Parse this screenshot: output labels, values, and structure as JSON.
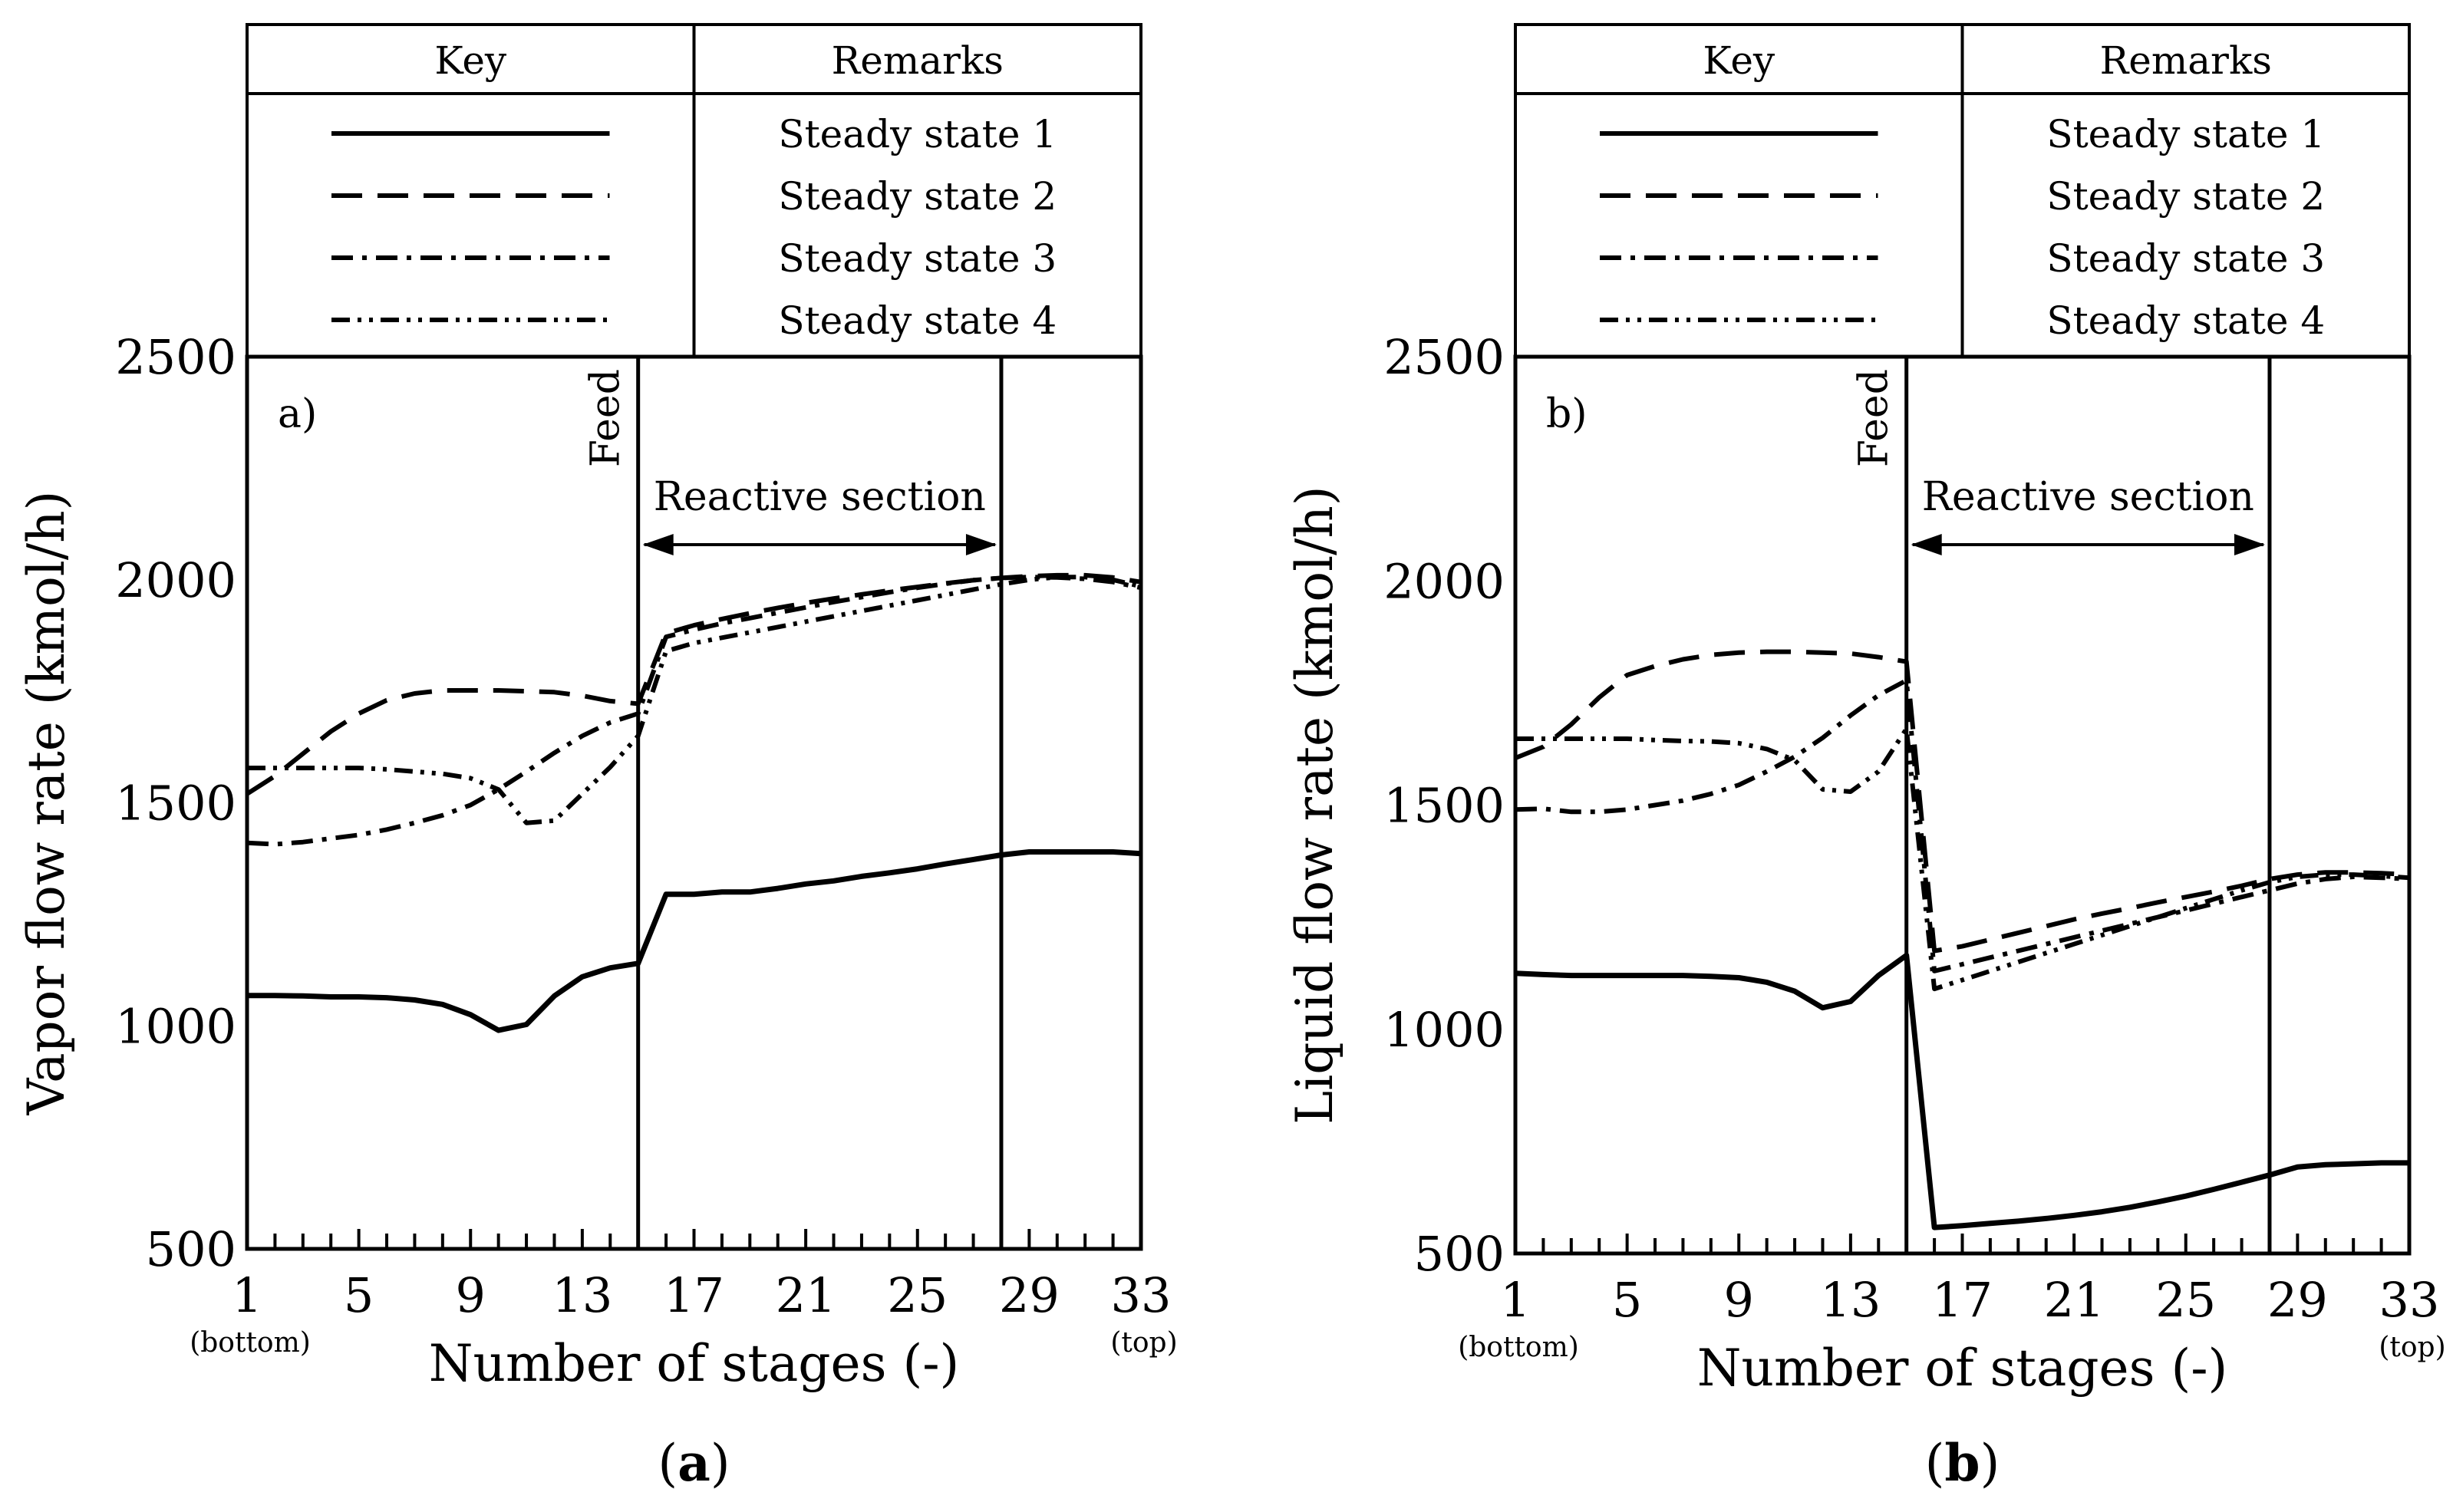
{
  "legend_header": {
    "key": "Key",
    "remarks": "Remarks"
  },
  "legend_entries": [
    {
      "label": "Steady state 1",
      "style": "solid"
    },
    {
      "label": "Steady state 2",
      "style": "long-dash"
    },
    {
      "label": "Steady state 3",
      "style": "dash-dot"
    },
    {
      "label": "Steady state 4",
      "style": "dash-dot-dot"
    }
  ],
  "x_axis": {
    "title": "Number of stages (-)",
    "ticks": [
      "1",
      "5",
      "9",
      "13",
      "17",
      "21",
      "25",
      "29",
      "33"
    ],
    "bottom_note": "(bottom)",
    "top_note": "(top)",
    "range": [
      1,
      33
    ]
  },
  "y_axis": {
    "ticks": [
      "500",
      "1000",
      "1500",
      "2000",
      "2500"
    ],
    "range": [
      500,
      2500
    ]
  },
  "annotations": {
    "feed": "Feed",
    "reactive_section": "Reactive section",
    "feed_stage": 15,
    "reactive_end_stage": 28
  },
  "colors": {
    "line": "#000000",
    "background": "#ffffff"
  },
  "chart_data": [
    {
      "type": "line",
      "panel_label": "a)",
      "caption_letter": "a",
      "xlabel": "Number of stages (-)",
      "ylabel": "Vapor flow rate (kmol/h)",
      "xlim": [
        1,
        33
      ],
      "ylim": [
        500,
        2500
      ],
      "x": [
        1,
        2,
        3,
        4,
        5,
        6,
        7,
        8,
        9,
        10,
        11,
        12,
        13,
        14,
        15,
        16,
        17,
        18,
        19,
        20,
        21,
        22,
        23,
        24,
        25,
        26,
        27,
        28,
        29,
        30,
        31,
        32,
        33
      ],
      "series": [
        {
          "name": "Steady state 1",
          "style": "solid",
          "values": [
            1068,
            1068,
            1067,
            1065,
            1065,
            1063,
            1058,
            1048,
            1025,
            990,
            1003,
            1067,
            1110,
            1130,
            1140,
            1295,
            1295,
            1300,
            1300,
            1308,
            1318,
            1325,
            1335,
            1343,
            1352,
            1363,
            1373,
            1383,
            1390,
            1390,
            1390,
            1390,
            1386
          ]
        },
        {
          "name": "Steady state 2",
          "style": "long-dash",
          "values": [
            1520,
            1560,
            1610,
            1660,
            1700,
            1730,
            1745,
            1752,
            1752,
            1752,
            1750,
            1748,
            1740,
            1728,
            1722,
            1880,
            1898,
            1912,
            1925,
            1937,
            1948,
            1958,
            1967,
            1976,
            1984,
            1992,
            1999,
            2004,
            2008,
            2010,
            2010,
            2005,
            1995
          ]
        },
        {
          "name": "Steady state 3",
          "style": "dash-dot",
          "values": [
            1410,
            1407,
            1412,
            1420,
            1428,
            1440,
            1455,
            1472,
            1495,
            1530,
            1570,
            1612,
            1650,
            1680,
            1700,
            1872,
            1888,
            1902,
            1914,
            1926,
            1938,
            1950,
            1961,
            1972,
            1982,
            1991,
            1999,
            2004,
            2006,
            2005,
            2002,
            1995,
            1982
          ]
        },
        {
          "name": "Steady state 4",
          "style": "dash-dot-dot",
          "values": [
            1578,
            1578,
            1578,
            1578,
            1578,
            1575,
            1570,
            1565,
            1555,
            1530,
            1455,
            1460,
            1520,
            1580,
            1650,
            1840,
            1858,
            1870,
            1882,
            1894,
            1906,
            1918,
            1930,
            1942,
            1954,
            1966,
            1978,
            1990,
            2000,
            2006,
            2006,
            2000,
            1985
          ]
        }
      ]
    },
    {
      "type": "line",
      "panel_label": "b)",
      "caption_letter": "b",
      "xlabel": "Number of stages (-)",
      "ylabel": "Liquid flow rate (kmol/h)",
      "xlim": [
        1,
        33
      ],
      "ylim": [
        500,
        2500
      ],
      "x": [
        1,
        2,
        3,
        4,
        5,
        6,
        7,
        8,
        9,
        10,
        11,
        12,
        13,
        14,
        15,
        16,
        17,
        18,
        19,
        20,
        21,
        22,
        23,
        24,
        25,
        26,
        27,
        28,
        29,
        30,
        31,
        32,
        33
      ],
      "series": [
        {
          "name": "Steady state 1",
          "style": "solid",
          "values": [
            1125,
            1122,
            1120,
            1120,
            1120,
            1120,
            1120,
            1118,
            1115,
            1105,
            1085,
            1048,
            1062,
            1120,
            1165,
            558,
            562,
            567,
            572,
            578,
            585,
            593,
            603,
            615,
            628,
            643,
            659,
            675,
            693,
            698,
            700,
            702,
            702
          ]
        },
        {
          "name": "Steady state 2",
          "style": "long-dash",
          "values": [
            1605,
            1630,
            1680,
            1740,
            1790,
            1810,
            1825,
            1835,
            1840,
            1842,
            1842,
            1840,
            1838,
            1830,
            1820,
            1175,
            1185,
            1200,
            1215,
            1230,
            1245,
            1258,
            1270,
            1283,
            1295,
            1307,
            1320,
            1335,
            1345,
            1350,
            1350,
            1348,
            1345
          ]
        },
        {
          "name": "Steady state 3",
          "style": "dash-dot",
          "values": [
            1490,
            1492,
            1485,
            1485,
            1490,
            1500,
            1510,
            1525,
            1545,
            1575,
            1608,
            1650,
            1700,
            1745,
            1778,
            1130,
            1145,
            1160,
            1175,
            1190,
            1205,
            1220,
            1235,
            1250,
            1265,
            1280,
            1295,
            1310,
            1325,
            1335,
            1340,
            1338,
            1335
          ]
        },
        {
          "name": "Steady state 4",
          "style": "dash-dot-dot",
          "values": [
            1648,
            1648,
            1648,
            1648,
            1648,
            1645,
            1643,
            1642,
            1638,
            1625,
            1600,
            1535,
            1530,
            1575,
            1670,
            1090,
            1110,
            1130,
            1150,
            1170,
            1190,
            1210,
            1230,
            1250,
            1270,
            1290,
            1310,
            1328,
            1340,
            1345,
            1345,
            1342,
            1338
          ]
        }
      ]
    }
  ]
}
